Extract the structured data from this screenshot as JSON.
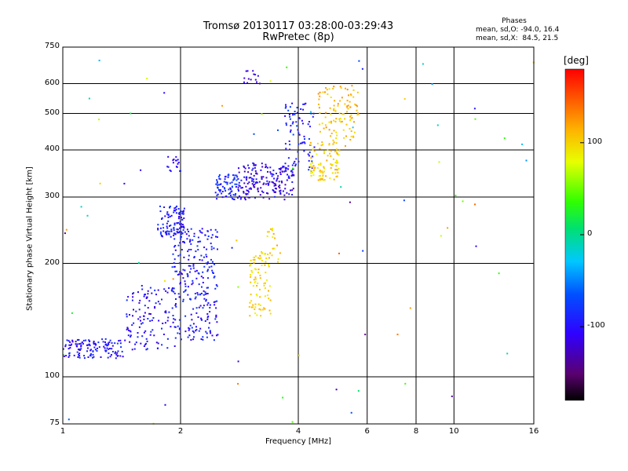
{
  "title_line1": "Tromsø 20130117 03:28:00-03:29:43",
  "title_line2": "RwPretec (8p)",
  "phases": {
    "heading": "Phases",
    "line1": "mean, sd,O: -94.0, 16.4",
    "line2": "mean, sd,X:  84.5, 21.5"
  },
  "colorbar": {
    "unit": "[deg]",
    "ticks": [
      "100",
      "0",
      "-100"
    ],
    "range": [
      -180,
      180
    ]
  },
  "colors": {
    "gridline": "#000000",
    "background": "#ffffff"
  },
  "chart_data": {
    "type": "scatter",
    "xlabel": "Frequency [MHz]",
    "ylabel": "Stationary phase Virtual Height [km]",
    "xscale": "log",
    "yscale": "log",
    "xlim": [
      1,
      16
    ],
    "ylim": [
      75,
      750
    ],
    "xticks": [
      1,
      2,
      4,
      6,
      8,
      10,
      16
    ],
    "yticks": [
      75,
      100,
      200,
      300,
      400,
      500,
      600,
      750
    ],
    "color_value": "phase (deg)",
    "grid": true,
    "clusters": [
      {
        "f": [
          1.0,
          1.45
        ],
        "h": [
          112,
          126
        ],
        "phase": -100,
        "count": 130
      },
      {
        "f": [
          1.45,
          1.95
        ],
        "h": [
          118,
          175
        ],
        "phase": -100,
        "count": 120
      },
      {
        "f": [
          1.9,
          2.5
        ],
        "h": [
          125,
          250
        ],
        "phase": -95,
        "count": 260
      },
      {
        "f": [
          1.75,
          2.05
        ],
        "h": [
          235,
          285
        ],
        "phase": -95,
        "count": 110
      },
      {
        "f": [
          1.85,
          2.0
        ],
        "h": [
          350,
          385
        ],
        "phase": -105,
        "count": 18
      },
      {
        "f": [
          2.45,
          2.85
        ],
        "h": [
          295,
          345
        ],
        "phase": -85,
        "count": 80
      },
      {
        "f": [
          2.8,
          3.9
        ],
        "h": [
          295,
          370
        ],
        "phase": -110,
        "count": 190
      },
      {
        "f": [
          3.7,
          4.4
        ],
        "h": [
          350,
          540
        ],
        "phase": -90,
        "count": 80
      },
      {
        "f": [
          3.0,
          3.4
        ],
        "h": [
          145,
          215
        ],
        "phase": 100,
        "count": 85
      },
      {
        "f": [
          3.3,
          3.6
        ],
        "h": [
          195,
          250
        ],
        "phase": 105,
        "count": 18
      },
      {
        "f": [
          4.3,
          5.1
        ],
        "h": [
          330,
          420
        ],
        "phase": 100,
        "count": 90
      },
      {
        "f": [
          4.5,
          5.7
        ],
        "h": [
          400,
          600
        ],
        "phase": 110,
        "count": 110
      },
      {
        "f": [
          2.9,
          3.2
        ],
        "h": [
          590,
          650
        ],
        "phase": -110,
        "count": 14
      },
      {
        "f": [
          1.0,
          16.0
        ],
        "h": [
          75,
          700
        ],
        "phase": 0,
        "count": 75
      }
    ]
  }
}
